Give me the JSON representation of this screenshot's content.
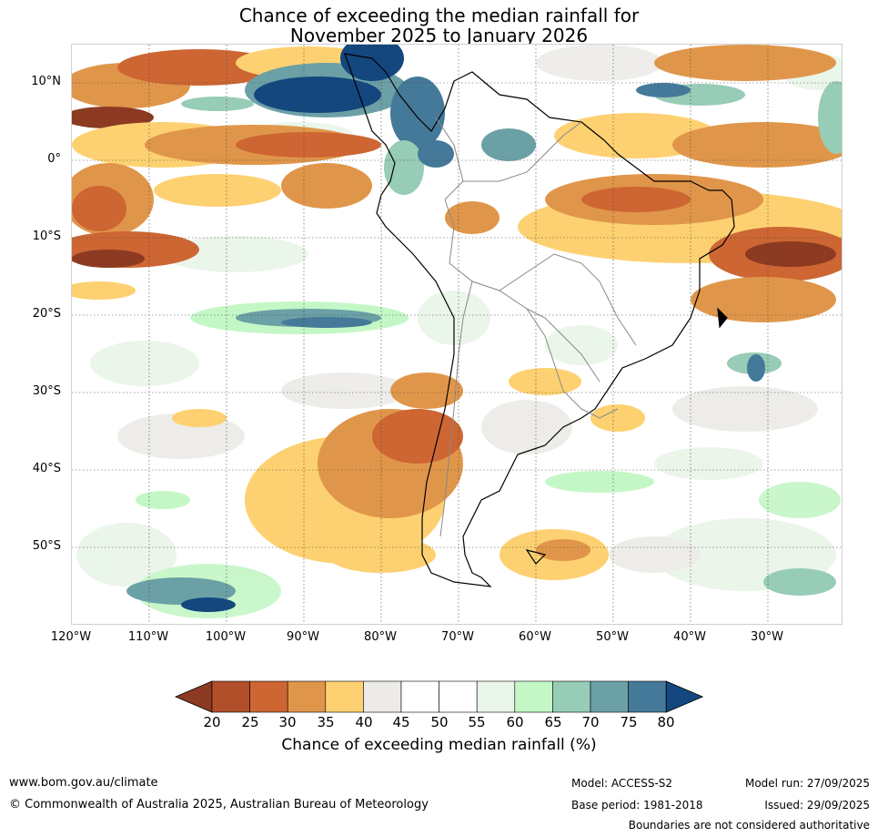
{
  "title": {
    "line1": "Chance of exceeding the median rainfall for",
    "line2": "November 2025 to January 2026"
  },
  "map": {
    "region": "South America",
    "latitude_labels": [
      "10°N",
      "0°",
      "10°S",
      "20°S",
      "30°S",
      "40°S",
      "50°S"
    ],
    "longitude_labels": [
      "120°W",
      "110°W",
      "100°W",
      "90°W",
      "80°W",
      "70°W",
      "60°W",
      "50°W",
      "40°W",
      "30°W"
    ],
    "lat_range": [
      -60,
      15
    ],
    "lon_range": [
      -120,
      -20
    ]
  },
  "legend": {
    "label": "Chance of exceeding median rainfall (%)",
    "ticks": [
      "20",
      "25",
      "30",
      "35",
      "40",
      "45",
      "50",
      "55",
      "60",
      "65",
      "70",
      "75",
      "80"
    ],
    "colors": [
      "#8c3a22",
      "#b04f2a",
      "#cd6633",
      "#e0964a",
      "#fdd171",
      "#ecebe7",
      "#ffffff",
      "#ffffff",
      "#e9f5e8",
      "#c4f7c6",
      "#97ccb6",
      "#6ba0a6",
      "#457999",
      "#13477e"
    ]
  },
  "footer": {
    "url": "www.bom.gov.au/climate",
    "copyright": "© Commonwealth of Australia 2025, Australian Bureau of Meteorology",
    "model": "Model: ACCESS-S2",
    "base_period": "Base period: 1981-2018",
    "model_run": "Model run: 27/09/2025",
    "issued": "Issued: 29/09/2025",
    "disclaimer": "Boundaries are not considered authoritative"
  }
}
